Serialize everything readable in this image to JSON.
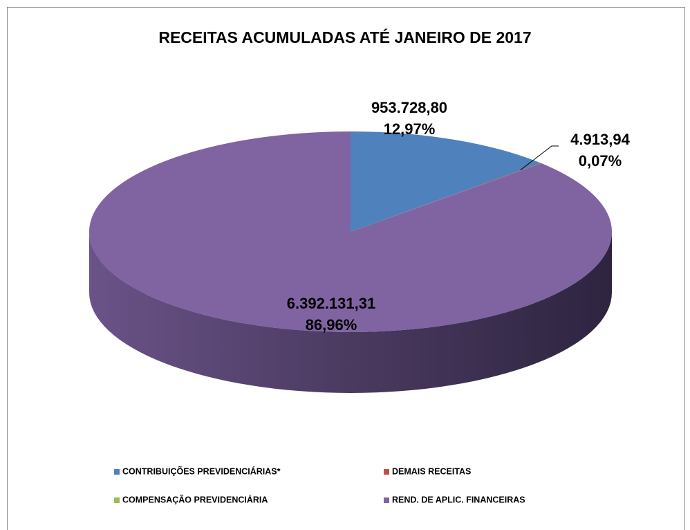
{
  "chart_data": {
    "type": "pie3d",
    "title": "RECEITAS ACUMULADAS ATÉ JANEIRO DE 2017",
    "categories": [
      "CONTRIBUIÇÕES PREVIDENCIÁRIAS*",
      "DEMAIS RECEITAS",
      "COMPENSAÇÃO PREVIDENCIÁRIA",
      "REND. DE APLIC. FINANCEIRAS"
    ],
    "values": [
      953728.8,
      4913.94,
      null,
      6392131.31
    ],
    "value_labels": [
      "953.728,80",
      "4.913,94",
      null,
      "6.392.131,31"
    ],
    "percent_labels": [
      "12,97%",
      "0,07%",
      null,
      "86,96%"
    ],
    "colors": [
      "#4f81bd",
      "#c0504d",
      "#9bbb59",
      "#8064a2"
    ],
    "legend": "bottom"
  }
}
